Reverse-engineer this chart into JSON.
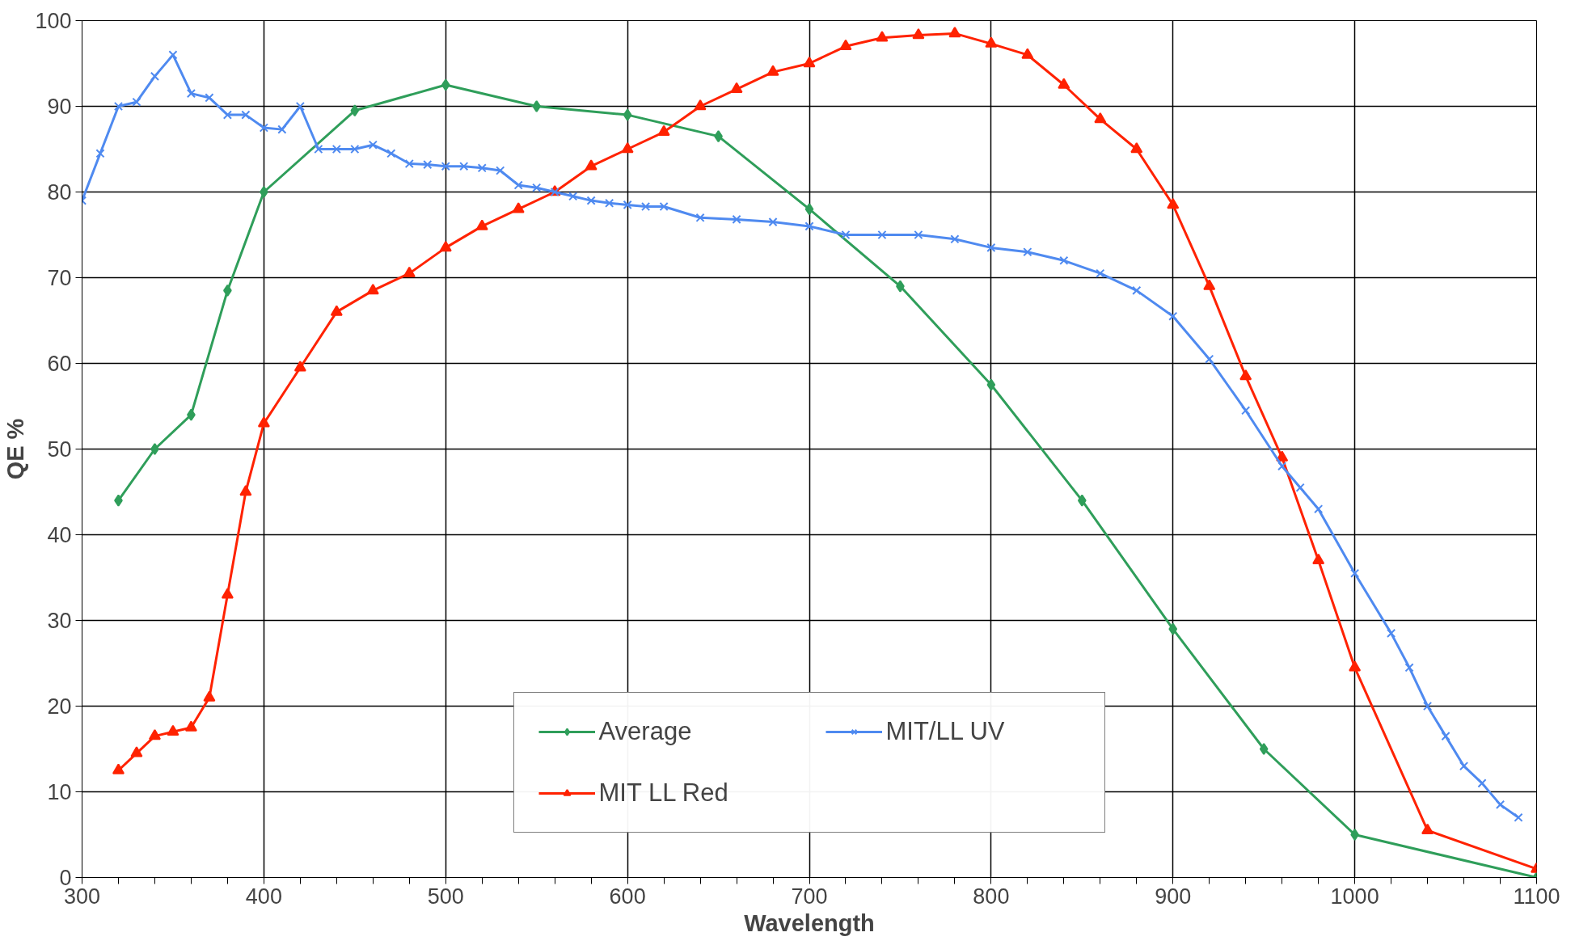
{
  "chart_data": {
    "type": "line",
    "xlabel": "Wavelength",
    "ylabel": "QE %",
    "xlim": [
      300,
      1100
    ],
    "ylim": [
      0,
      100
    ],
    "xticks": [
      300,
      {
        "value": 320,
        "label": null
      },
      {
        "value": 340,
        "label": null
      },
      {
        "value": 360,
        "label": null
      },
      {
        "value": 380,
        "label": null
      },
      400,
      {
        "value": 420,
        "label": null
      },
      {
        "value": 440,
        "label": null
      },
      {
        "value": 460,
        "label": null
      },
      {
        "value": 480,
        "label": null
      },
      500,
      {
        "value": 520,
        "label": null
      },
      {
        "value": 540,
        "label": null
      },
      {
        "value": 560,
        "label": null
      },
      {
        "value": 580,
        "label": null
      },
      600,
      {
        "value": 620,
        "label": null
      },
      {
        "value": 640,
        "label": null
      },
      {
        "value": 660,
        "label": null
      },
      {
        "value": 680,
        "label": null
      },
      700,
      {
        "value": 720,
        "label": null
      },
      {
        "value": 740,
        "label": null
      },
      {
        "value": 760,
        "label": null
      },
      {
        "value": 780,
        "label": null
      },
      800,
      {
        "value": 820,
        "label": null
      },
      {
        "value": 840,
        "label": null
      },
      {
        "value": 860,
        "label": null
      },
      {
        "value": 880,
        "label": null
      },
      900,
      {
        "value": 920,
        "label": null
      },
      {
        "value": 940,
        "label": null
      },
      {
        "value": 960,
        "label": null
      },
      {
        "value": 980,
        "label": null
      },
      1000,
      {
        "value": 1020,
        "label": null
      },
      {
        "value": 1040,
        "label": null
      },
      {
        "value": 1060,
        "label": null
      },
      {
        "value": 1080,
        "label": null
      },
      1100
    ],
    "yticks": [
      0,
      10,
      20,
      30,
      40,
      50,
      60,
      70,
      80,
      90,
      100
    ],
    "grid": true,
    "legend": "bottom",
    "line_style": "solid",
    "series": [
      {
        "name": "Average",
        "color": "#2f9e5a",
        "marker": "diamond",
        "x": [
          320,
          340,
          360,
          380,
          400,
          450,
          500,
          550,
          600,
          650,
          700,
          750,
          800,
          850,
          900,
          950,
          1000,
          1100
        ],
        "values": [
          44,
          50,
          54,
          68.5,
          80,
          89.5,
          92.5,
          90,
          89,
          86.5,
          78,
          69,
          57.5,
          44,
          29,
          15,
          5,
          0
        ]
      },
      {
        "name": "MIT LL Red",
        "color": "#ff2200",
        "marker": "triangle",
        "x": [
          320,
          330,
          340,
          350,
          360,
          370,
          380,
          390,
          400,
          420,
          440,
          460,
          480,
          500,
          520,
          540,
          560,
          580,
          600,
          620,
          640,
          660,
          680,
          700,
          720,
          740,
          760,
          780,
          800,
          820,
          840,
          860,
          880,
          900,
          920,
          940,
          960,
          980,
          1000,
          1040,
          1100
        ],
        "values": [
          12.5,
          14.5,
          16.5,
          17,
          17.5,
          21,
          33,
          45,
          53,
          59.5,
          66,
          68.5,
          70.5,
          73.5,
          76,
          78,
          80,
          83,
          85,
          87,
          90,
          92,
          94,
          95,
          97,
          98,
          98.3,
          98.5,
          97.3,
          96,
          92.5,
          88.5,
          85,
          78.5,
          69,
          58.5,
          49,
          37,
          24.5,
          5.5,
          1
        ]
      },
      {
        "name": "MIT/LL UV",
        "color": "#4f8af0",
        "marker": "cross",
        "x": [
          300,
          310,
          320,
          330,
          340,
          350,
          360,
          370,
          380,
          390,
          400,
          410,
          420,
          430,
          440,
          450,
          460,
          470,
          480,
          490,
          500,
          510,
          520,
          530,
          540,
          550,
          560,
          570,
          580,
          590,
          600,
          610,
          620,
          640,
          660,
          680,
          700,
          720,
          740,
          760,
          780,
          800,
          820,
          840,
          860,
          880,
          900,
          920,
          940,
          960,
          970,
          980,
          1000,
          1020,
          1030,
          1040,
          1050,
          1060,
          1070,
          1080,
          1090
        ],
        "values": [
          79,
          84.5,
          90,
          90.5,
          93.5,
          96,
          91.5,
          91,
          89,
          89,
          87.5,
          87.3,
          90,
          85,
          85,
          85,
          85.5,
          84.5,
          83.3,
          83.2,
          83,
          83,
          82.8,
          82.5,
          80.8,
          80.5,
          80,
          79.5,
          79,
          78.7,
          78.5,
          78.3,
          78.3,
          77,
          76.8,
          76.5,
          76,
          75,
          75,
          75,
          74.5,
          73.5,
          73,
          72,
          70.5,
          68.5,
          65.5,
          60.5,
          54.5,
          48,
          45.5,
          43,
          35.5,
          28.5,
          24.5,
          20,
          16.5,
          13,
          11,
          8.5,
          7
        ]
      }
    ]
  }
}
